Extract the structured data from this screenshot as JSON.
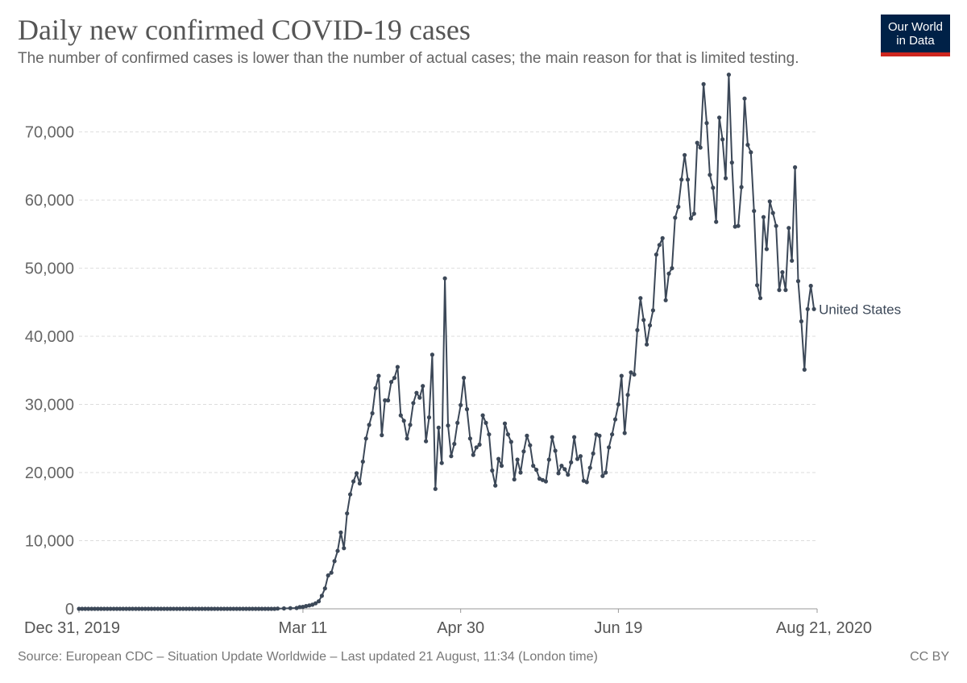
{
  "header": {
    "title": "Daily new confirmed COVID-19 cases",
    "subtitle": "The number of confirmed cases is lower than the number of actual cases; the main reason for that is limited testing."
  },
  "logo": {
    "line1": "Our World",
    "line2": "in Data"
  },
  "footer": {
    "source": "Source: European CDC – Situation Update Worldwide – Last updated 21 August, 11:34 (London time)",
    "license": "CC BY"
  },
  "colors": {
    "series": "#3c4858",
    "grid": "#dddddd",
    "logo_bg": "#002147",
    "logo_accent": "#ce261e"
  },
  "chart_data": {
    "type": "line",
    "x_start": "2019-12-31",
    "x_end": "2020-08-21",
    "ylim": [
      0,
      78000
    ],
    "grid": "horizontal-dashed",
    "y_ticks": [
      0,
      10000,
      20000,
      30000,
      40000,
      50000,
      60000,
      70000
    ],
    "y_tick_labels": [
      "0",
      "10,000",
      "20,000",
      "30,000",
      "40,000",
      "50,000",
      "60,000",
      "70,000"
    ],
    "x_ticks": [
      "2019-12-31",
      "2020-03-11",
      "2020-04-30",
      "2020-06-19",
      "2020-08-21"
    ],
    "x_tick_labels": [
      "Dec 31, 2019",
      "Mar 11",
      "Apr 30",
      "Jun 19",
      "Aug 21, 2020"
    ],
    "series": [
      {
        "name": "United States",
        "points": [
          [
            "2019-12-31",
            0
          ],
          [
            "2020-01-15",
            0
          ],
          [
            "2020-02-01",
            0
          ],
          [
            "2020-02-15",
            0
          ],
          [
            "2020-03-01",
            0
          ],
          [
            "2020-03-03",
            30
          ],
          [
            "2020-03-05",
            60
          ],
          [
            "2020-03-07",
            100
          ],
          [
            "2020-03-09",
            120
          ],
          [
            "2020-03-10",
            250
          ],
          [
            "2020-03-11",
            280
          ],
          [
            "2020-03-12",
            400
          ],
          [
            "2020-03-13",
            500
          ],
          [
            "2020-03-14",
            600
          ],
          [
            "2020-03-15",
            800
          ],
          [
            "2020-03-16",
            1100
          ],
          [
            "2020-03-17",
            1900
          ],
          [
            "2020-03-18",
            3000
          ],
          [
            "2020-03-19",
            4900
          ],
          [
            "2020-03-20",
            5300
          ],
          [
            "2020-03-21",
            7000
          ],
          [
            "2020-03-22",
            8500
          ],
          [
            "2020-03-23",
            11200
          ],
          [
            "2020-03-24",
            8900
          ],
          [
            "2020-03-25",
            14000
          ],
          [
            "2020-03-26",
            16800
          ],
          [
            "2020-03-27",
            18700
          ],
          [
            "2020-03-28",
            19900
          ],
          [
            "2020-03-29",
            18400
          ],
          [
            "2020-03-30",
            21600
          ],
          [
            "2020-03-31",
            25000
          ],
          [
            "2020-04-01",
            27000
          ],
          [
            "2020-04-02",
            28700
          ],
          [
            "2020-04-03",
            32400
          ],
          [
            "2020-04-04",
            34200
          ],
          [
            "2020-04-05",
            25500
          ],
          [
            "2020-04-06",
            30600
          ],
          [
            "2020-04-07",
            30600
          ],
          [
            "2020-04-08",
            33300
          ],
          [
            "2020-04-09",
            33900
          ],
          [
            "2020-04-10",
            35500
          ],
          [
            "2020-04-11",
            28400
          ],
          [
            "2020-04-12",
            27600
          ],
          [
            "2020-04-13",
            25000
          ],
          [
            "2020-04-14",
            27000
          ],
          [
            "2020-04-15",
            30200
          ],
          [
            "2020-04-16",
            31700
          ],
          [
            "2020-04-17",
            31000
          ],
          [
            "2020-04-18",
            32700
          ],
          [
            "2020-04-19",
            24600
          ],
          [
            "2020-04-20",
            28100
          ],
          [
            "2020-04-21",
            37300
          ],
          [
            "2020-04-22",
            17600
          ],
          [
            "2020-04-23",
            26600
          ],
          [
            "2020-04-24",
            21400
          ],
          [
            "2020-04-25",
            48500
          ],
          [
            "2020-04-26",
            26900
          ],
          [
            "2020-04-27",
            22400
          ],
          [
            "2020-04-28",
            24200
          ],
          [
            "2020-04-29",
            27300
          ],
          [
            "2020-04-30",
            29900
          ],
          [
            "2020-05-01",
            33900
          ],
          [
            "2020-05-02",
            29300
          ],
          [
            "2020-05-03",
            25000
          ],
          [
            "2020-05-04",
            22600
          ],
          [
            "2020-05-05",
            23700
          ],
          [
            "2020-05-06",
            24100
          ],
          [
            "2020-05-07",
            28400
          ],
          [
            "2020-05-08",
            27300
          ],
          [
            "2020-05-09",
            25600
          ],
          [
            "2020-05-10",
            20300
          ],
          [
            "2020-05-11",
            18100
          ],
          [
            "2020-05-12",
            22000
          ],
          [
            "2020-05-13",
            21000
          ],
          [
            "2020-05-14",
            27200
          ],
          [
            "2020-05-15",
            25600
          ],
          [
            "2020-05-16",
            24500
          ],
          [
            "2020-05-17",
            19000
          ],
          [
            "2020-05-18",
            21900
          ],
          [
            "2020-05-19",
            20000
          ],
          [
            "2020-05-20",
            23100
          ],
          [
            "2020-05-21",
            25400
          ],
          [
            "2020-05-22",
            24000
          ],
          [
            "2020-05-23",
            21000
          ],
          [
            "2020-05-24",
            20400
          ],
          [
            "2020-05-25",
            19100
          ],
          [
            "2020-05-26",
            18900
          ],
          [
            "2020-05-27",
            18700
          ],
          [
            "2020-05-28",
            21900
          ],
          [
            "2020-05-29",
            25200
          ],
          [
            "2020-05-30",
            23200
          ],
          [
            "2020-05-31",
            19900
          ],
          [
            "2020-06-01",
            21000
          ],
          [
            "2020-06-02",
            20500
          ],
          [
            "2020-06-03",
            19700
          ],
          [
            "2020-06-04",
            21500
          ],
          [
            "2020-06-05",
            25200
          ],
          [
            "2020-06-06",
            22000
          ],
          [
            "2020-06-07",
            22400
          ],
          [
            "2020-06-08",
            18800
          ],
          [
            "2020-06-09",
            18600
          ],
          [
            "2020-06-10",
            20700
          ],
          [
            "2020-06-11",
            22800
          ],
          [
            "2020-06-12",
            25600
          ],
          [
            "2020-06-13",
            25400
          ],
          [
            "2020-06-14",
            19500
          ],
          [
            "2020-06-15",
            20000
          ],
          [
            "2020-06-16",
            23700
          ],
          [
            "2020-06-17",
            25600
          ],
          [
            "2020-06-18",
            27800
          ],
          [
            "2020-06-19",
            30000
          ],
          [
            "2020-06-20",
            34200
          ],
          [
            "2020-06-21",
            25800
          ],
          [
            "2020-06-22",
            31400
          ],
          [
            "2020-06-23",
            34700
          ],
          [
            "2020-06-24",
            34400
          ],
          [
            "2020-06-25",
            40900
          ],
          [
            "2020-06-26",
            45600
          ],
          [
            "2020-06-27",
            42400
          ],
          [
            "2020-06-28",
            38800
          ],
          [
            "2020-06-29",
            41600
          ],
          [
            "2020-06-30",
            43800
          ],
          [
            "2020-07-01",
            52000
          ],
          [
            "2020-07-02",
            53400
          ],
          [
            "2020-07-03",
            54400
          ],
          [
            "2020-07-04",
            45300
          ],
          [
            "2020-07-05",
            49200
          ],
          [
            "2020-07-06",
            50000
          ],
          [
            "2020-07-07",
            57400
          ],
          [
            "2020-07-08",
            59000
          ],
          [
            "2020-07-09",
            63000
          ],
          [
            "2020-07-10",
            66600
          ],
          [
            "2020-07-11",
            63000
          ],
          [
            "2020-07-12",
            57300
          ],
          [
            "2020-07-13",
            58000
          ],
          [
            "2020-07-14",
            68400
          ],
          [
            "2020-07-15",
            67700
          ],
          [
            "2020-07-16",
            77000
          ],
          [
            "2020-07-17",
            71300
          ],
          [
            "2020-07-18",
            63700
          ],
          [
            "2020-07-19",
            61800
          ],
          [
            "2020-07-20",
            56800
          ],
          [
            "2020-07-21",
            72100
          ],
          [
            "2020-07-22",
            68900
          ],
          [
            "2020-07-23",
            63200
          ],
          [
            "2020-07-24",
            78400
          ],
          [
            "2020-07-25",
            65500
          ],
          [
            "2020-07-26",
            56100
          ],
          [
            "2020-07-27",
            56200
          ],
          [
            "2020-07-28",
            61900
          ],
          [
            "2020-07-29",
            74900
          ],
          [
            "2020-07-30",
            68100
          ],
          [
            "2020-07-31",
            67000
          ],
          [
            "2020-08-01",
            58400
          ],
          [
            "2020-08-02",
            47500
          ],
          [
            "2020-08-03",
            45600
          ],
          [
            "2020-08-04",
            57500
          ],
          [
            "2020-08-05",
            52800
          ],
          [
            "2020-08-06",
            59800
          ],
          [
            "2020-08-07",
            58100
          ],
          [
            "2020-08-08",
            56200
          ],
          [
            "2020-08-09",
            46800
          ],
          [
            "2020-08-10",
            49400
          ],
          [
            "2020-08-11",
            46800
          ],
          [
            "2020-08-12",
            55900
          ],
          [
            "2020-08-13",
            51100
          ],
          [
            "2020-08-14",
            64800
          ],
          [
            "2020-08-15",
            48100
          ],
          [
            "2020-08-16",
            42200
          ],
          [
            "2020-08-17",
            35100
          ],
          [
            "2020-08-18",
            44000
          ],
          [
            "2020-08-19",
            47400
          ],
          [
            "2020-08-20",
            44000
          ]
        ]
      }
    ]
  }
}
